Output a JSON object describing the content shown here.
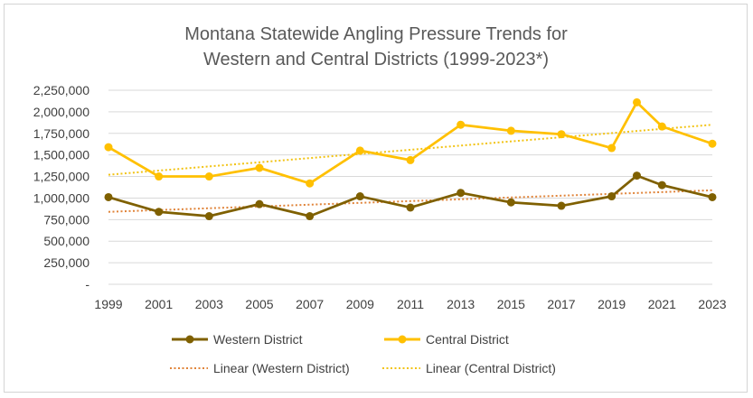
{
  "chart_data": {
    "type": "line",
    "title_lines": [
      "Montana Statewide Angling Pressure Trends for",
      "Western and Central Districts (1999-2023*)"
    ],
    "x": [
      1999,
      2001,
      2003,
      2005,
      2007,
      2009,
      2011,
      2013,
      2015,
      2017,
      2019,
      2020,
      2021,
      2023
    ],
    "x_ticks": [
      "1999",
      "2001",
      "2003",
      "2005",
      "2007",
      "2009",
      "2011",
      "2013",
      "2015",
      "2017",
      "2019",
      "2021",
      "2023"
    ],
    "xlim": [
      1999,
      2023
    ],
    "ylim": [
      0,
      2250000
    ],
    "y_ticks": [
      {
        "value": 0,
        "label": "-"
      },
      {
        "value": 250000,
        "label": "250,000"
      },
      {
        "value": 500000,
        "label": "500,000"
      },
      {
        "value": 750000,
        "label": "750,000"
      },
      {
        "value": 1000000,
        "label": "1,000,000"
      },
      {
        "value": 1250000,
        "label": "1,250,000"
      },
      {
        "value": 1500000,
        "label": "1,500,000"
      },
      {
        "value": 1750000,
        "label": "1,750,000"
      },
      {
        "value": 2000000,
        "label": "2,000,000"
      },
      {
        "value": 2250000,
        "label": "2,250,000"
      }
    ],
    "grid": true,
    "series": [
      {
        "name": "Western District",
        "color": "#7f6000",
        "values": [
          1010000,
          840000,
          790000,
          930000,
          790000,
          1020000,
          890000,
          1060000,
          950000,
          910000,
          1020000,
          1260000,
          1150000,
          1010000
        ]
      },
      {
        "name": "Central District",
        "color": "#ffc000",
        "values": [
          1590000,
          1250000,
          1250000,
          1350000,
          1170000,
          1550000,
          1440000,
          1850000,
          1780000,
          1740000,
          1580000,
          2110000,
          1830000,
          1630000
        ]
      }
    ],
    "trendlines": [
      {
        "name": "Linear (Western District)",
        "color": "#e0843a",
        "start": 840000,
        "end": 1090000
      },
      {
        "name": "Linear (Central District)",
        "color": "#f2c314",
        "start": 1270000,
        "end": 1850000
      }
    ],
    "legend_position": "bottom"
  }
}
